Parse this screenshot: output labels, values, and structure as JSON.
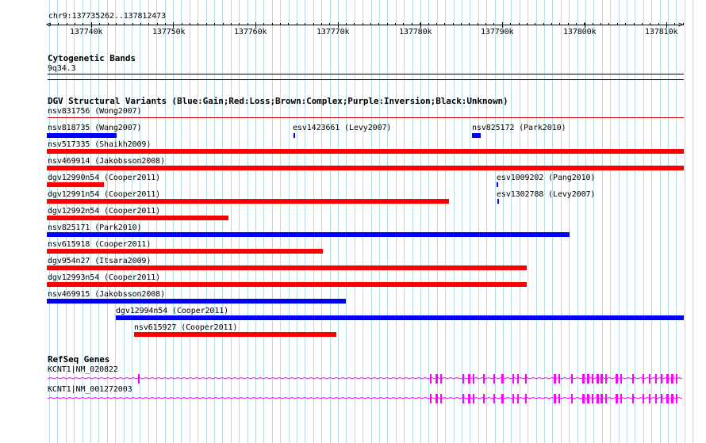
{
  "colors": {
    "gain": "#0000ff",
    "loss": "#ff0000",
    "gene": "#ff00ff",
    "grid": "#b7dcea",
    "divider": "#cc0000"
  },
  "ruler": {
    "location": "chr9:137735262..137812473",
    "ticks": [
      "137740k",
      "137750k",
      "137760k",
      "137770k",
      "137780k",
      "137790k",
      "137800k",
      "137810k"
    ]
  },
  "cytoband": {
    "title": "Cytogenetic Bands",
    "band": "9q34.3"
  },
  "dgv": {
    "title": "DGV Structural Variants (Blue:Gain;Red:Loss;Brown:Complex;Purple:Inversion;Black:Unknown)",
    "header_item": "nsv831756 (Wong2007)",
    "items": [
      {
        "label": "nsv818735 (Wang2007)",
        "type": "gain"
      },
      {
        "label": "esv1423661 (Levy2007)",
        "type": "gain"
      },
      {
        "label": "nsv825172 (Park2010)",
        "type": "gain"
      },
      {
        "label": "nsv517335 (Shaikh2009)",
        "type": "loss"
      },
      {
        "label": "nsv469914 (Jakobsson2008)",
        "type": "loss"
      },
      {
        "label": "dgv12990n54 (Cooper2011)",
        "type": "loss"
      },
      {
        "label": "esv1009202 (Pang2010)",
        "type": "gain"
      },
      {
        "label": "dgv12991n54 (Cooper2011)",
        "type": "loss"
      },
      {
        "label": "esv1302788 (Levy2007)",
        "type": "gain"
      },
      {
        "label": "dgv12992n54 (Cooper2011)",
        "type": "loss"
      },
      {
        "label": "nsv825171 (Park2010)",
        "type": "gain"
      },
      {
        "label": "nsv615918 (Cooper2011)",
        "type": "loss"
      },
      {
        "label": "dgv954n27 (Itsara2009)",
        "type": "loss"
      },
      {
        "label": "dgv12993n54 (Cooper2011)",
        "type": "loss"
      },
      {
        "label": "nsv469915 (Jakobsson2008)",
        "type": "gain"
      },
      {
        "label": "dgv12994n54 (Cooper2011)",
        "type": "gain"
      },
      {
        "label": "nsv615927 (Cooper2011)",
        "type": "loss"
      }
    ]
  },
  "refseq": {
    "title": "RefSeq Genes",
    "genes": [
      {
        "label": "KCNT1|NM_020822"
      },
      {
        "label": "KCNT1|NM_001272003"
      }
    ]
  }
}
